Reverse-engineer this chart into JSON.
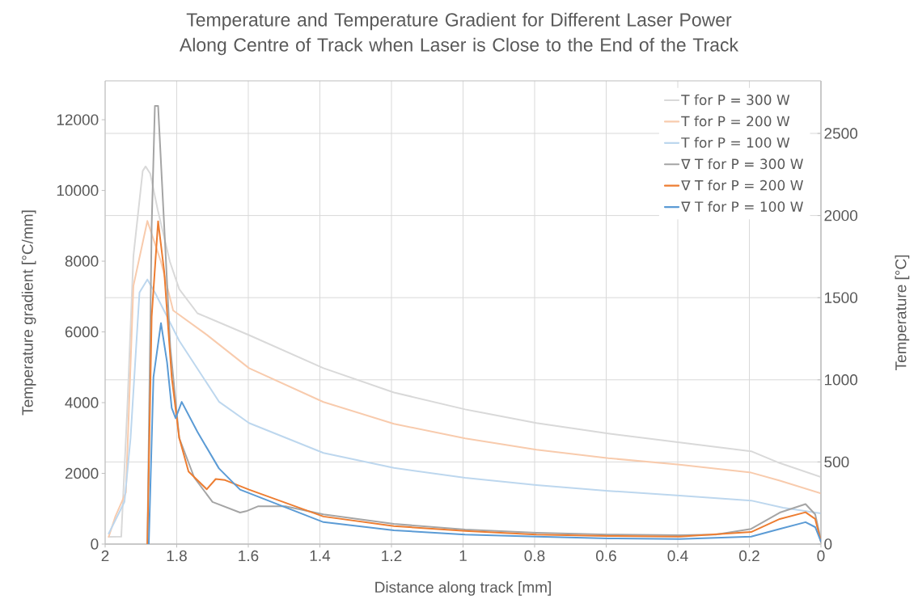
{
  "chart_data": {
    "type": "line",
    "title": "Temperature and Temperature Gradient for Different Laser Power Along Centre of Track when Laser is Close to the End of the Track",
    "xlabel": "Distance along track [mm]",
    "ylabel": "Temperature gradient [°C/mm]",
    "y2label": "Temperature [°C]",
    "xlim": [
      2,
      0
    ],
    "xticks": [
      2,
      1.8,
      1.6,
      1.4,
      1.2,
      1,
      0.8,
      0.6,
      0.4,
      0.2,
      0
    ],
    "ylim": [
      0,
      13100
    ],
    "yticks": [
      0,
      2000,
      4000,
      6000,
      8000,
      10000,
      12000
    ],
    "y2lim": [
      0,
      2820
    ],
    "y2ticks": [
      0,
      500,
      1000,
      1500,
      2000,
      2500
    ],
    "grid": true,
    "legend": "top right",
    "marker": "none",
    "line_style": "solid",
    "series": [
      {
        "name": "T for P = 300 W",
        "color": "#d9d9d9",
        "axis": "y2",
        "x": [
          1.99,
          1.955,
          1.938,
          1.921,
          1.895,
          1.887,
          1.874,
          1.853,
          1.819,
          1.793,
          1.742,
          1.598,
          1.39,
          1.193,
          0.994,
          0.795,
          0.594,
          0.395,
          0.195,
          0.115,
          0
        ],
        "values": [
          44,
          45,
          830,
          1754,
          2272,
          2299,
          2255,
          2034,
          1719,
          1552,
          1405,
          1272,
          1071,
          923,
          820,
          737,
          673,
          619,
          565,
          493,
          408
        ]
      },
      {
        "name": "T for P = 200 W",
        "color": "#f8cbad",
        "axis": "y2",
        "x": [
          1.99,
          1.972,
          1.942,
          1.921,
          1.882,
          1.844,
          1.81,
          1.716,
          1.598,
          1.39,
          1.193,
          0.994,
          0.795,
          0.594,
          0.395,
          0.195,
          0.115,
          0
        ],
        "values": [
          44,
          165,
          314,
          1572,
          1967,
          1719,
          1422,
          1274,
          1071,
          865,
          732,
          643,
          575,
          523,
          483,
          435,
          386,
          309
        ]
      },
      {
        "name": "T for P = 100 W",
        "color": "#bdd7ee",
        "axis": "y2",
        "x": [
          1.99,
          1.946,
          1.929,
          1.904,
          1.882,
          1.861,
          1.793,
          1.682,
          1.598,
          1.39,
          1.193,
          0.994,
          0.795,
          0.594,
          0.395,
          0.195,
          0.106,
          0
        ],
        "values": [
          64,
          257,
          645,
          1532,
          1611,
          1532,
          1238,
          867,
          737,
          555,
          464,
          403,
          359,
          324,
          295,
          265,
          221,
          187
        ]
      },
      {
        "name": "∇ T for P = 300 W",
        "color": "#a5a5a5",
        "x": [
          1.882,
          1.87,
          1.861,
          1.852,
          1.835,
          1.818,
          1.793,
          1.751,
          1.7,
          1.623,
          1.606,
          1.572,
          1.496,
          1.39,
          1.193,
          0.994,
          0.795,
          0.594,
          0.395,
          0.294,
          0.195,
          0.115,
          0.043,
          0.016,
          0
        ],
        "values": [
          0,
          9000,
          12390,
          12390,
          9000,
          5570,
          3000,
          1880,
          1190,
          890,
          930,
          1070,
          1070,
          840,
          570,
          410,
          320,
          270,
          250,
          270,
          430,
          890,
          1130,
          840,
          110
        ]
      },
      {
        "name": "∇ T for P = 200 W",
        "color": "#ed7d31",
        "x": [
          1.882,
          1.87,
          1.852,
          1.835,
          1.814,
          1.793,
          1.767,
          1.716,
          1.691,
          1.665,
          1.598,
          1.39,
          1.193,
          0.994,
          0.795,
          0.594,
          0.395,
          0.195,
          0.115,
          0.043,
          0.016,
          0
        ],
        "values": [
          0,
          6430,
          9130,
          7710,
          4720,
          3000,
          2050,
          1550,
          1840,
          1810,
          1540,
          780,
          510,
          370,
          270,
          230,
          210,
          340,
          710,
          900,
          710,
          70
        ]
      },
      {
        "name": "∇ T for P = 100 W",
        "color": "#5b9bd5",
        "x": [
          1.878,
          1.865,
          1.844,
          1.827,
          1.814,
          1.803,
          1.786,
          1.742,
          1.682,
          1.623,
          1.39,
          1.193,
          0.994,
          0.795,
          0.594,
          0.395,
          0.195,
          0.115,
          0.043,
          0.016,
          0
        ],
        "values": [
          0,
          4720,
          6250,
          5140,
          3850,
          3560,
          4020,
          3170,
          2140,
          1540,
          620,
          390,
          270,
          210,
          160,
          140,
          210,
          430,
          620,
          480,
          70
        ]
      }
    ]
  }
}
